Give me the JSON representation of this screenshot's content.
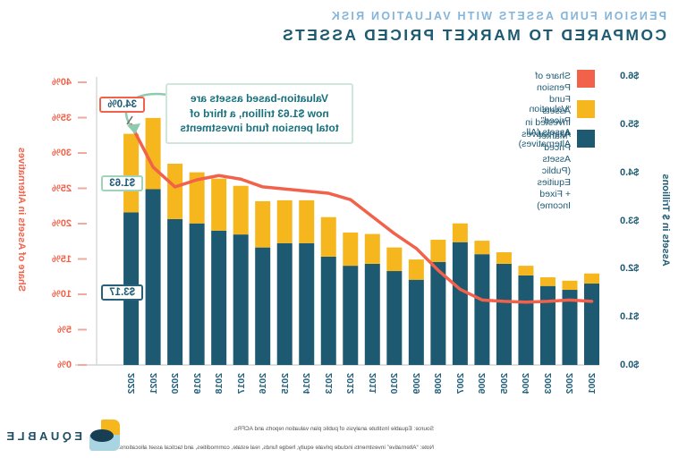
{
  "title": {
    "line1": "PENSION FUND ASSETS WITH VALUATION RISK",
    "line2": "COMPARED TO MARKET PRICED ASSETS"
  },
  "legend": {
    "items": [
      {
        "label": "Share of Pension Fund Assets Invested in\nAlternatives",
        "color": "#f2614a"
      },
      {
        "label": "“Valuation Priced” Assets (All Alternatives)",
        "color": "#f5b71d"
      },
      {
        "label": "“Market Priced” Assets\n(Public Equities + Fixed Income)",
        "color": "#1d5971"
      }
    ]
  },
  "annotations": {
    "callout": "Valuation-based assets are\nnow $1.63 trillion, a third of\ntotal pension fund investments",
    "share_label": "34.0%",
    "valuation_label": "$1.63",
    "market_label": "$3.17"
  },
  "footer": {
    "source": "Source: Equable Institute analysis of public plan valuation reports and ACFRs.",
    "note": "Note: “Alternative” investments include private equity, hedge funds, real estate, commodities, and tactical asset allocations."
  },
  "logo": {
    "text": "EQUABLE"
  },
  "chart_data": {
    "type": "bar",
    "note_orientation": "image is horizontally mirrored; data below is in true reading order",
    "categories": [
      2001,
      2002,
      2003,
      2004,
      2005,
      2006,
      2007,
      2008,
      2009,
      2010,
      2011,
      2012,
      2013,
      2014,
      2015,
      2016,
      2017,
      2018,
      2019,
      2020,
      2021,
      2022
    ],
    "series": [
      {
        "name": "“Market Priced” Assets (Public Equities + Fixed Income)",
        "type": "bar-stack",
        "color": "#1d5971",
        "values": [
          1.69,
          1.56,
          1.64,
          1.86,
          2.1,
          2.3,
          2.55,
          2.14,
          1.77,
          1.95,
          2.1,
          2.06,
          2.25,
          2.53,
          2.53,
          2.44,
          2.71,
          2.79,
          2.94,
          3.03,
          3.65,
          3.17
        ]
      },
      {
        "name": "“Valuation Priced” Assets (All Alternatives)",
        "type": "bar-stack",
        "color": "#f5b71d",
        "values": [
          0.21,
          0.19,
          0.18,
          0.2,
          0.24,
          0.28,
          0.39,
          0.46,
          0.42,
          0.49,
          0.62,
          0.69,
          0.82,
          0.89,
          0.89,
          0.96,
          1.01,
          1.08,
          1.06,
          1.15,
          1.48,
          1.63
        ]
      },
      {
        "name": "Share of Pension Fund Assets Invested in Alternatives",
        "type": "line",
        "color": "#f2614a",
        "values": [
          9.0,
          9.2,
          9.0,
          8.9,
          9.0,
          9.2,
          10.7,
          13.4,
          16.5,
          18.6,
          21.0,
          23.4,
          24.3,
          24.6,
          24.9,
          25.2,
          26.3,
          26.8,
          26.2,
          25.2,
          28.0,
          34.0
        ]
      }
    ],
    "left_axis": {
      "title": "Assets in $ Trillions",
      "ticks": [
        "$0.0",
        "$1.0",
        "$2.0",
        "$3.0",
        "$4.0",
        "$5.0",
        "$6.0"
      ],
      "min": 0,
      "max": 6
    },
    "right_axis": {
      "title": "Share of Assets in Alternatives",
      "ticks": [
        "0%",
        "5%",
        "10%",
        "15%",
        "20%",
        "25%",
        "30%",
        "35%",
        "40%"
      ],
      "min": 0,
      "max": 40
    },
    "grid": false,
    "legend_position": "top-left"
  }
}
